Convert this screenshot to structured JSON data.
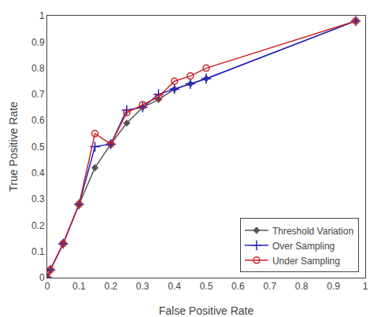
{
  "chart_data": {
    "type": "line",
    "x_label": "False Positive Rate",
    "y_label": "True Positive Rate",
    "x": [
      0.0,
      0.01,
      0.05,
      0.1,
      0.15,
      0.2,
      0.25,
      0.3,
      0.35,
      0.4,
      0.45,
      0.5,
      0.97
    ],
    "series": [
      {
        "name": "Threshold Variation",
        "color": "#555555",
        "marker": "diamond",
        "values": [
          0.0,
          0.03,
          0.13,
          0.28,
          0.42,
          0.51,
          0.59,
          0.65,
          0.68,
          0.72,
          0.74,
          0.76,
          0.98
        ]
      },
      {
        "name": "Over Sampling",
        "color": "#2222cc",
        "marker": "plus",
        "values": [
          0.0,
          0.03,
          0.13,
          0.28,
          0.5,
          0.51,
          0.64,
          0.65,
          0.7,
          0.72,
          0.74,
          0.76,
          0.98
        ]
      },
      {
        "name": "Under Sampling",
        "color": "#cc2222",
        "marker": "circle-open",
        "values": [
          0.0,
          0.03,
          0.13,
          0.28,
          0.55,
          0.51,
          0.63,
          0.66,
          0.69,
          0.75,
          0.77,
          0.8,
          0.98
        ]
      }
    ],
    "xlim": [
      0,
      1
    ],
    "ylim": [
      0,
      1
    ],
    "xticks": [
      0,
      0.1,
      0.2,
      0.3,
      0.4,
      0.5,
      0.6,
      0.7,
      0.8,
      0.9,
      1
    ],
    "yticks": [
      0,
      0.1,
      0.2,
      0.3,
      0.4,
      0.5,
      0.6,
      0.7,
      0.8,
      0.9,
      1
    ],
    "grid": false,
    "legend": "lower right"
  }
}
